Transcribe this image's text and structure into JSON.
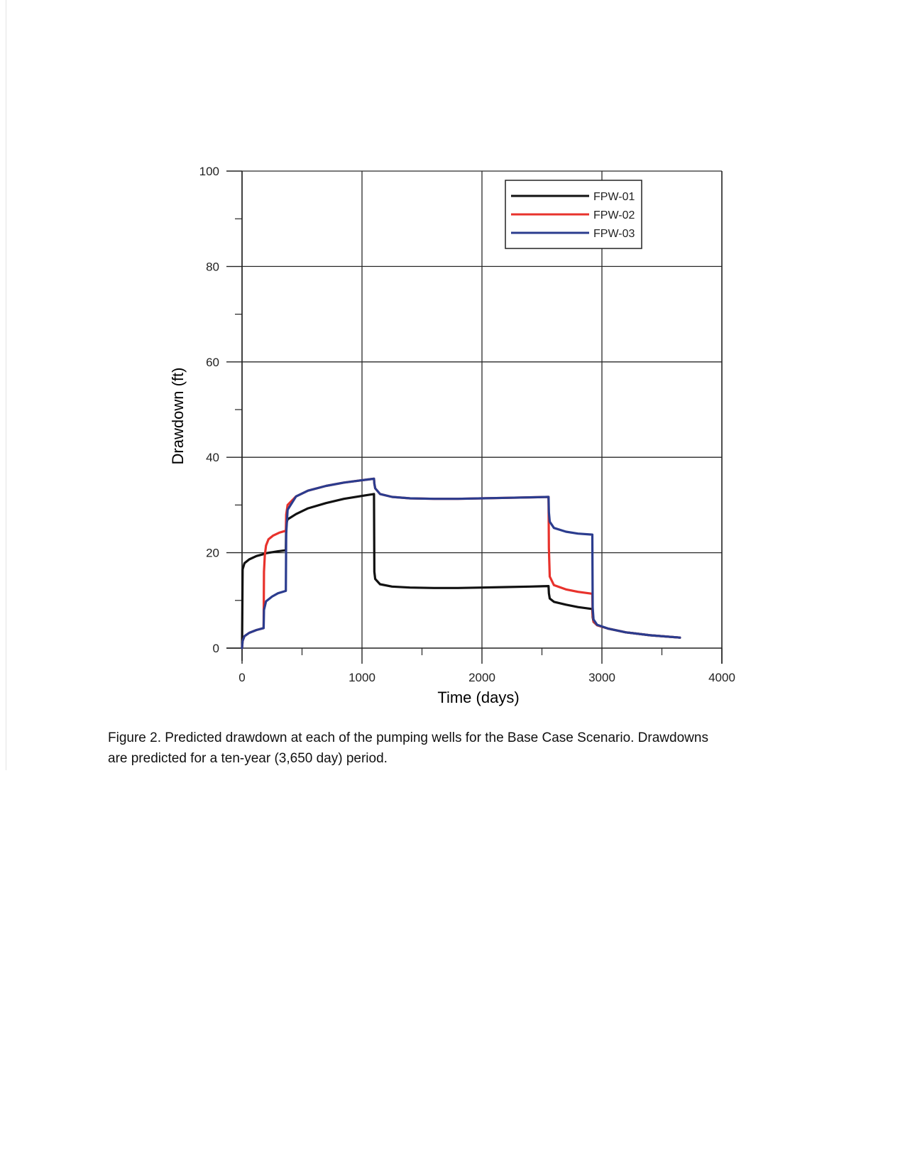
{
  "chart_data": {
    "type": "line",
    "xlabel": "Time (days)",
    "ylabel": "Drawdown (ft)",
    "xlim": [
      0,
      4000
    ],
    "ylim": [
      0,
      100
    ],
    "x_ticks": [
      "0",
      "1000",
      "2000",
      "3000",
      "4000"
    ],
    "y_ticks": [
      "0",
      "20",
      "40",
      "60",
      "80",
      "100"
    ],
    "grid": true,
    "legend_position": "top-right",
    "series": [
      {
        "name": "FPW-01",
        "color": "#111111",
        "x": [
          0,
          5,
          20,
          60,
          120,
          180,
          183,
          200,
          250,
          300,
          365,
          368,
          380,
          450,
          550,
          700,
          850,
          1000,
          1100,
          1103,
          1110,
          1150,
          1250,
          1400,
          1600,
          1800,
          2000,
          2200,
          2400,
          2555,
          2558,
          2565,
          2600,
          2700,
          2800,
          2920,
          2923,
          2930,
          2960,
          3050,
          3200,
          3400,
          3650
        ],
        "y": [
          0,
          16.5,
          17.8,
          18.6,
          19.3,
          19.7,
          19.8,
          19.9,
          20.1,
          20.3,
          20.5,
          26.0,
          27.0,
          28.1,
          29.3,
          30.4,
          31.3,
          31.9,
          32.3,
          16.0,
          14.5,
          13.4,
          12.9,
          12.7,
          12.6,
          12.6,
          12.7,
          12.8,
          12.9,
          13.0,
          11.5,
          10.4,
          9.7,
          9.1,
          8.6,
          8.2,
          6.5,
          5.5,
          4.8,
          4.1,
          3.3,
          2.7,
          2.2
        ]
      },
      {
        "name": "FPW-02",
        "color": "#e8322c",
        "x": [
          0,
          5,
          20,
          60,
          120,
          180,
          183,
          190,
          200,
          220,
          260,
          310,
          365,
          368,
          380,
          450,
          550,
          700,
          850,
          1000,
          1100,
          1103,
          1110,
          1150,
          1250,
          1400,
          1600,
          1800,
          2000,
          2200,
          2400,
          2555,
          2558,
          2565,
          2600,
          2700,
          2800,
          2920,
          2923,
          2930,
          2960,
          3050,
          3200,
          3400,
          3650
        ],
        "y": [
          0,
          1.5,
          2.5,
          3.2,
          3.8,
          4.2,
          16.0,
          19.5,
          21.5,
          22.8,
          23.6,
          24.2,
          24.6,
          28.0,
          30.0,
          31.8,
          33.0,
          34.0,
          34.7,
          35.2,
          35.5,
          34.5,
          33.5,
          32.3,
          31.7,
          31.4,
          31.3,
          31.3,
          31.4,
          31.5,
          31.6,
          31.7,
          21.0,
          15.0,
          13.2,
          12.3,
          11.8,
          11.4,
          7.0,
          5.6,
          4.8,
          4.1,
          3.3,
          2.7,
          2.2
        ]
      },
      {
        "name": "FPW-03",
        "color": "#2b3c8e",
        "x": [
          0,
          5,
          20,
          60,
          120,
          180,
          183,
          200,
          250,
          300,
          365,
          368,
          380,
          450,
          550,
          700,
          850,
          1000,
          1100,
          1103,
          1110,
          1150,
          1250,
          1400,
          1600,
          1800,
          2000,
          2200,
          2400,
          2555,
          2558,
          2565,
          2600,
          2700,
          2800,
          2920,
          2923,
          2930,
          2960,
          3050,
          3200,
          3400,
          3650
        ],
        "y": [
          0,
          1.5,
          2.5,
          3.2,
          3.8,
          4.2,
          8.0,
          9.8,
          10.8,
          11.5,
          12.0,
          24.0,
          29.0,
          31.8,
          33.0,
          34.0,
          34.7,
          35.2,
          35.5,
          34.5,
          33.5,
          32.3,
          31.7,
          31.4,
          31.3,
          31.3,
          31.4,
          31.5,
          31.6,
          31.7,
          28.5,
          26.5,
          25.2,
          24.4,
          24.0,
          23.8,
          8.5,
          6.0,
          4.9,
          4.1,
          3.3,
          2.7,
          2.2
        ]
      }
    ]
  },
  "caption": {
    "line1": "Figure 2.  Predicted drawdown at each of the pumping wells for the Base Case Scenario.  Drawdowns",
    "line2": "are predicted for a ten-year (3,650 day) period."
  }
}
